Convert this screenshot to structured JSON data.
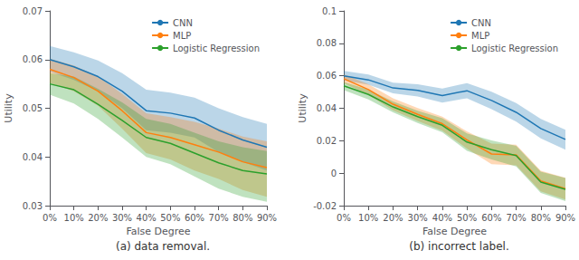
{
  "chart_data": [
    {
      "type": "line",
      "title": "(a) data removal.",
      "xlabel": "False Degree",
      "ylabel": "Utility",
      "categories": [
        "0%",
        "10%",
        "20%",
        "30%",
        "40%",
        "50%",
        "60%",
        "70%",
        "80%",
        "90%"
      ],
      "ylim": [
        0.03,
        0.07
      ],
      "yticks": [
        0.03,
        0.04,
        0.05,
        0.06,
        0.07
      ],
      "grid": false,
      "legend": "upper right",
      "series": [
        {
          "name": "CNN",
          "color": "#1f77b4",
          "values": [
            0.06,
            0.0585,
            0.0565,
            0.0535,
            0.0495,
            0.049,
            0.048,
            0.0455,
            0.0435,
            0.042
          ],
          "lower": [
            0.0575,
            0.0558,
            0.0535,
            0.05,
            0.0455,
            0.045,
            0.044,
            0.041,
            0.039,
            0.0372
          ],
          "upper": [
            0.0628,
            0.0615,
            0.0598,
            0.0572,
            0.0538,
            0.0532,
            0.0522,
            0.05,
            0.0482,
            0.0468
          ]
        },
        {
          "name": "MLP",
          "color": "#ff7f0e",
          "values": [
            0.058,
            0.0563,
            0.0535,
            0.0495,
            0.045,
            0.044,
            0.0425,
            0.041,
            0.039,
            0.0378
          ],
          "lower": [
            0.0552,
            0.0535,
            0.0505,
            0.0458,
            0.0408,
            0.0395,
            0.0372,
            0.0355,
            0.0332,
            0.0318
          ],
          "upper": [
            0.0602,
            0.0588,
            0.0565,
            0.053,
            0.049,
            0.0482,
            0.0472,
            0.0458,
            0.0442,
            0.0432
          ]
        },
        {
          "name": "Logistic Regression",
          "color": "#2ca02c",
          "values": [
            0.055,
            0.0538,
            0.0508,
            0.0475,
            0.044,
            0.0428,
            0.0408,
            0.0388,
            0.0372,
            0.0365
          ],
          "lower": [
            0.0528,
            0.051,
            0.0478,
            0.044,
            0.04,
            0.0385,
            0.036,
            0.0335,
            0.0318,
            0.0308
          ],
          "upper": [
            0.0572,
            0.0565,
            0.054,
            0.0512,
            0.0478,
            0.0468,
            0.045,
            0.0432,
            0.042,
            0.0412
          ]
        }
      ]
    },
    {
      "type": "line",
      "title": "(b) incorrect label.",
      "xlabel": "False Degree",
      "ylabel": "Utility",
      "categories": [
        "0%",
        "10%",
        "20%",
        "30%",
        "40%",
        "50%",
        "60%",
        "70%",
        "80%",
        "90%"
      ],
      "ylim": [
        -0.02,
        0.1
      ],
      "yticks": [
        -0.02,
        0,
        0.02,
        0.04,
        0.06,
        0.08,
        0.1
      ],
      "grid": false,
      "legend": "upper right",
      "series": [
        {
          "name": "CNN",
          "color": "#1f77b4",
          "values": [
            0.06,
            0.0575,
            0.0525,
            0.051,
            0.0478,
            0.0508,
            0.0448,
            0.0375,
            0.0275,
            0.0208
          ],
          "lower": [
            0.0572,
            0.0545,
            0.0492,
            0.0472,
            0.0435,
            0.0462,
            0.0395,
            0.0318,
            0.0215,
            0.0145
          ],
          "upper": [
            0.063,
            0.0608,
            0.0558,
            0.0548,
            0.0522,
            0.0555,
            0.0502,
            0.0432,
            0.0335,
            0.0268
          ]
        },
        {
          "name": "MLP",
          "color": "#ff7f0e",
          "values": [
            0.0582,
            0.0515,
            0.0425,
            0.0362,
            0.0305,
            0.0205,
            0.0118,
            0.0112,
            -0.0048,
            -0.0095
          ],
          "lower": [
            0.0555,
            0.0482,
            0.0388,
            0.0322,
            0.0262,
            0.0152,
            0.0055,
            0.0048,
            -0.0112,
            -0.0162
          ],
          "upper": [
            0.061,
            0.0548,
            0.0462,
            0.0402,
            0.0348,
            0.0258,
            0.0182,
            0.0175,
            0.0015,
            -0.0028
          ]
        },
        {
          "name": "Logistic Regression",
          "color": "#2ca02c",
          "values": [
            0.0538,
            0.0485,
            0.0408,
            0.0348,
            0.0295,
            0.0192,
            0.0145,
            0.0108,
            -0.0055,
            -0.01
          ],
          "lower": [
            0.0512,
            0.0455,
            0.0375,
            0.031,
            0.0252,
            0.0138,
            0.0085,
            0.0042,
            -0.0122,
            -0.0172
          ],
          "upper": [
            0.0562,
            0.0515,
            0.0442,
            0.0385,
            0.0338,
            0.0245,
            0.0202,
            0.0168,
            0.001,
            -0.003
          ]
        }
      ]
    }
  ]
}
